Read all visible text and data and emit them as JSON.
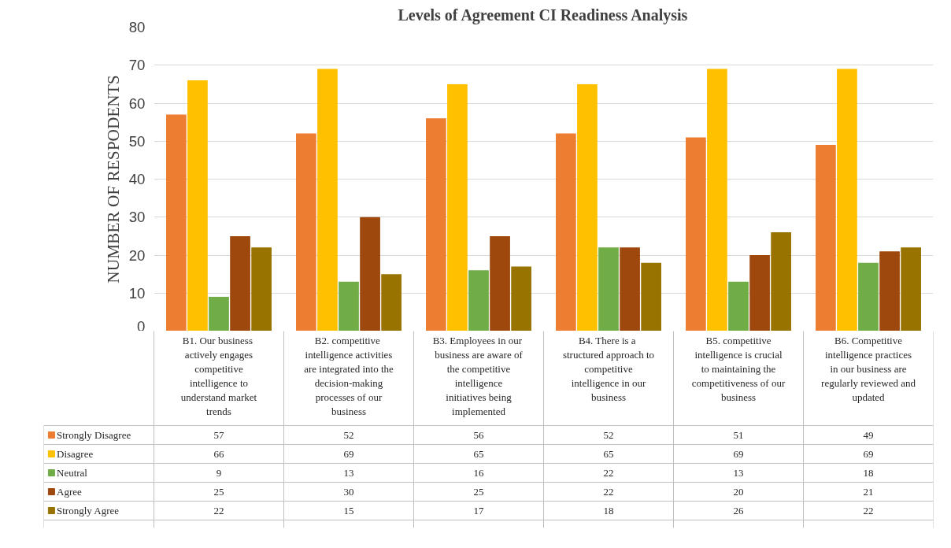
{
  "chart_data": {
    "type": "bar",
    "title": "Levels of Agreement CI Readiness Analysis",
    "ylabel": "NUMBER OF RESPODENTS",
    "categories": [
      "B1.  Our business actively engages competitive intelligence to understand market trends",
      "B2.  competitive intelligence activities are integrated into the decision-making processes of our business",
      "B3.  Employees in our business are aware of the competitive intelligence initiatives being implemented",
      "B4.  There is a structured approach to competitive intelligence in our business",
      "B5. competitive intelligence is crucial to maintaining the competitiveness of our business",
      "B6. Competitive intelligence practices in our business are regularly reviewed and updated"
    ],
    "series": [
      {
        "name": "Strongly Disagree",
        "color": "#ed7d31",
        "values": [
          57,
          52,
          56,
          52,
          51,
          49
        ]
      },
      {
        "name": "Disagree",
        "color": "#ffc000",
        "values": [
          66,
          69,
          65,
          65,
          69,
          69
        ]
      },
      {
        "name": "Neutral",
        "color": "#70ad47",
        "values": [
          9,
          13,
          16,
          22,
          13,
          18
        ]
      },
      {
        "name": "Agree",
        "color": "#9e480e",
        "values": [
          25,
          30,
          25,
          22,
          20,
          21
        ]
      },
      {
        "name": "Strongly Agree",
        "color": "#997300",
        "values": [
          22,
          15,
          17,
          18,
          26,
          22
        ]
      }
    ],
    "ylim": [
      0,
      80
    ],
    "yticks": [
      0,
      10,
      20,
      30,
      40,
      50,
      60,
      70,
      80
    ],
    "grid": "y",
    "legend": "bottom",
    "data_labels": true
  }
}
